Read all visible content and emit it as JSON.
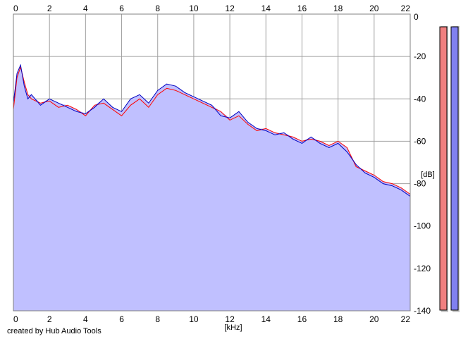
{
  "chart_data": {
    "type": "area",
    "xlabel": "[kHz]",
    "ylabel": "[dB]",
    "xlim": [
      0,
      22
    ],
    "ylim": [
      -140,
      0
    ],
    "x_ticks": [
      0,
      2,
      4,
      6,
      8,
      10,
      12,
      14,
      16,
      18,
      20,
      22
    ],
    "y_ticks": [
      0,
      -20,
      -40,
      -60,
      -80,
      -100,
      -120,
      -140
    ],
    "grid": true,
    "credit": "created by Hub Audio Tools",
    "fill_color": "#c0c0ff",
    "series": [
      {
        "color": "#ff0000",
        "x": [
          0,
          0.2,
          0.4,
          0.6,
          0.8,
          1,
          1.5,
          2,
          2.5,
          3,
          3.5,
          4,
          4.5,
          5,
          5.5,
          6,
          6.5,
          7,
          7.5,
          8,
          8.5,
          9,
          9.5,
          10,
          10.5,
          11,
          11.5,
          12,
          12.5,
          13,
          13.5,
          14,
          14.5,
          15,
          15.5,
          16,
          16.5,
          17,
          17.5,
          18,
          18.5,
          19,
          19.5,
          20,
          20.5,
          21,
          21.5,
          22
        ],
        "y": [
          -45,
          -30,
          -25,
          -32,
          -38,
          -40,
          -42,
          -41,
          -44,
          -43,
          -45,
          -48,
          -43,
          -42,
          -45,
          -48,
          -43,
          -40,
          -44,
          -38,
          -35,
          -36,
          -38,
          -40,
          -42,
          -44,
          -46,
          -50,
          -48,
          -52,
          -55,
          -54,
          -56,
          -57,
          -58,
          -60,
          -59,
          -60,
          -62,
          -60,
          -63,
          -72,
          -74,
          -76,
          -79,
          -80,
          -82,
          -85
        ]
      },
      {
        "color": "#0000c0",
        "x": [
          0,
          0.2,
          0.4,
          0.6,
          0.8,
          1,
          1.5,
          2,
          2.5,
          3,
          3.5,
          4,
          4.5,
          5,
          5.5,
          6,
          6.5,
          7,
          7.5,
          8,
          8.5,
          9,
          9.5,
          10,
          10.5,
          11,
          11.5,
          12,
          12.5,
          13,
          13.5,
          14,
          14.5,
          15,
          15.5,
          16,
          16.5,
          17,
          17.5,
          18,
          18.5,
          19,
          19.5,
          20,
          20.5,
          21,
          21.5,
          22
        ],
        "y": [
          -42,
          -28,
          -24,
          -34,
          -40,
          -38,
          -43,
          -40,
          -42,
          -44,
          -46,
          -47,
          -44,
          -40,
          -44,
          -46,
          -40,
          -38,
          -42,
          -36,
          -33,
          -34,
          -37,
          -39,
          -41,
          -43,
          -48,
          -49,
          -46,
          -51,
          -54,
          -55,
          -57,
          -56,
          -59,
          -61,
          -58,
          -61,
          -63,
          -61,
          -65,
          -71,
          -75,
          -77,
          -80,
          -81,
          -83,
          -86
        ]
      }
    ]
  },
  "level_meters": {
    "left": {
      "color": "#f08080",
      "level": 0.99
    },
    "right": {
      "color": "#8080f0",
      "level": 0.99
    }
  }
}
